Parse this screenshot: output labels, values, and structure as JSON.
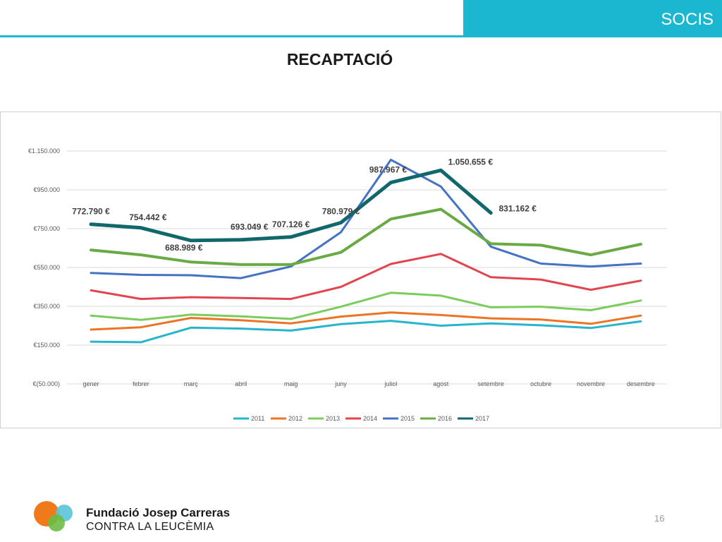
{
  "header": {
    "section_label": "SOCIS",
    "accent_color": "#1bb7d0"
  },
  "slide": {
    "title": "RECAPTACIÓ",
    "page_number": "16"
  },
  "footer": {
    "org_name": "Fundació Josep Carreras",
    "org_subtitle": "CONTRA LA LEUCÈMIA",
    "logo_colors": [
      "#f07a1a",
      "#6dbb45",
      "#5bc3d8"
    ]
  },
  "chart_data": {
    "type": "line",
    "title": "",
    "xlabel": "",
    "ylabel": "",
    "categories": [
      "gener",
      "febrer",
      "març",
      "abril",
      "maig",
      "juny",
      "juliol",
      "agost",
      "setembre",
      "octubre",
      "novembre",
      "desembre"
    ],
    "ylim": [
      -50000,
      1150000
    ],
    "y_ticks": [
      -50000,
      150000,
      350000,
      550000,
      750000,
      950000,
      1150000
    ],
    "y_tick_labels": [
      "€(50.000)",
      "€150.000",
      "€350.000",
      "€550.000",
      "€750.000",
      "€950.000",
      "€1.150.000"
    ],
    "grid": true,
    "legend_position": "bottom",
    "series": [
      {
        "name": "2011",
        "color": "#26b5cc",
        "width": 3,
        "values": [
          168000,
          165000,
          240000,
          235000,
          225000,
          258000,
          275000,
          250000,
          262000,
          252000,
          238000,
          272000
        ]
      },
      {
        "name": "2012",
        "color": "#ec7425",
        "width": 3,
        "values": [
          230000,
          242000,
          290000,
          278000,
          262000,
          297000,
          318000,
          305000,
          288000,
          282000,
          260000,
          302000
        ]
      },
      {
        "name": "2013",
        "color": "#7ccc5c",
        "width": 3,
        "values": [
          302000,
          280000,
          307000,
          298000,
          285000,
          348000,
          420000,
          405000,
          345000,
          348000,
          330000,
          380000
        ]
      },
      {
        "name": "2014",
        "color": "#e2454d",
        "width": 3,
        "values": [
          432000,
          388000,
          397000,
          393000,
          388000,
          450000,
          568000,
          620000,
          500000,
          488000,
          435000,
          482000
        ]
      },
      {
        "name": "2015",
        "color": "#4472c4",
        "width": 3,
        "values": [
          522000,
          512000,
          510000,
          495000,
          555000,
          732000,
          1105000,
          967000,
          657000,
          570000,
          555000,
          570000
        ]
      },
      {
        "name": "2016",
        "color": "#6aaa44",
        "width": 4,
        "values": [
          640000,
          615000,
          578000,
          565000,
          565000,
          628000,
          800000,
          850000,
          672000,
          665000,
          615000,
          670000
        ]
      },
      {
        "name": "2017",
        "color": "#10676c",
        "width": 5,
        "values": [
          772790,
          754442,
          688989,
          693049,
          707126,
          780979,
          987967,
          1050655,
          831162,
          null,
          null,
          null
        ]
      }
    ],
    "data_labels": [
      {
        "series": "2017",
        "category": "gener",
        "text": "772.790 €"
      },
      {
        "series": "2017",
        "category": "febrer",
        "text": "754.442 €"
      },
      {
        "series": "2017",
        "category": "març",
        "text": "688.989 €"
      },
      {
        "series": "2017",
        "category": "abril",
        "text": "693.049 €"
      },
      {
        "series": "2017",
        "category": "maig",
        "text": "707.126 €"
      },
      {
        "series": "2017",
        "category": "juny",
        "text": "780.979 €"
      },
      {
        "series": "2017",
        "category": "juliol",
        "text": "987.967 €"
      },
      {
        "series": "2017",
        "category": "agost",
        "text": "1.050.655 €"
      },
      {
        "series": "2017",
        "category": "setembre",
        "text": "831.162 €"
      }
    ]
  }
}
